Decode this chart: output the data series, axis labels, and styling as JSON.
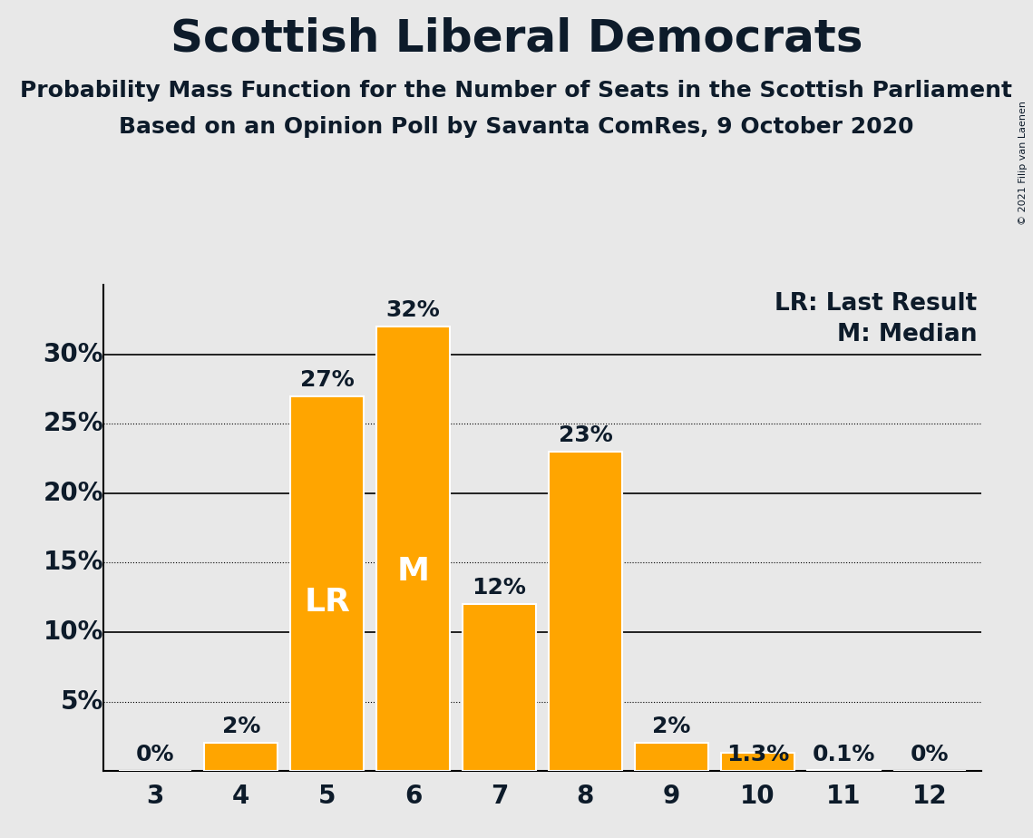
{
  "title": "Scottish Liberal Democrats",
  "subtitle1": "Probability Mass Function for the Number of Seats in the Scottish Parliament",
  "subtitle2": "Based on an Opinion Poll by Savanta ComRes, 9 October 2020",
  "copyright": "© 2021 Filip van Laenen",
  "categories": [
    3,
    4,
    5,
    6,
    7,
    8,
    9,
    10,
    11,
    12
  ],
  "values": [
    0.0,
    2.0,
    27.0,
    32.0,
    12.0,
    23.0,
    2.0,
    1.3,
    0.1,
    0.0
  ],
  "bar_color": "#FFA500",
  "bar_edge_color": "#FFFFFF",
  "background_color": "#E8E8E8",
  "text_color": "#0D1B2A",
  "label_texts": [
    "0%",
    "2%",
    "27%",
    "32%",
    "12%",
    "23%",
    "2%",
    "1.3%",
    "0.1%",
    "0%"
  ],
  "lr_bar_index": 2,
  "median_bar_index": 3,
  "lr_label": "LR",
  "median_label": "M",
  "legend_lr": "LR: Last Result",
  "legend_m": "M: Median",
  "ylim": [
    0,
    35
  ],
  "solid_gridlines": [
    10,
    20,
    30
  ],
  "dotted_gridlines": [
    5,
    15,
    25
  ],
  "title_fontsize": 36,
  "subtitle_fontsize": 18,
  "label_fontsize": 18,
  "tick_fontsize": 20,
  "legend_fontsize": 19,
  "lr_median_fontsize": 26,
  "ytick_labels": {
    "5": "5%",
    "10": "10%",
    "15": "15%",
    "20": "20%",
    "25": "25%",
    "30": "30%"
  }
}
